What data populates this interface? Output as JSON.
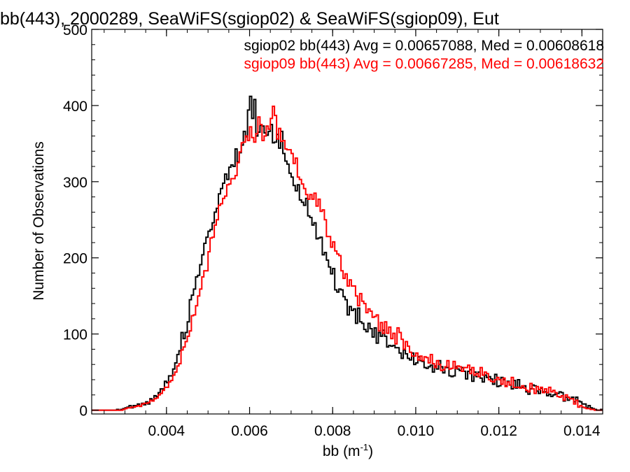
{
  "chart_data": {
    "type": "line",
    "title": "bb(443), 2000289, SeaWiFS(sgiop02) & SeaWiFS(sgiop09), Eut",
    "xlabel": "bb (m",
    "xlabel_sup": "-1",
    "xlabel_suffix": ")",
    "ylabel": "Number of Observations",
    "xlim": [
      0.0022,
      0.0145
    ],
    "ylim": [
      -5,
      500
    ],
    "xticks": [
      0.004,
      0.006,
      0.008,
      0.01,
      0.012,
      0.014
    ],
    "xtick_labels": [
      "0.004",
      "0.006",
      "0.008",
      "0.010",
      "0.012",
      "0.014"
    ],
    "yticks": [
      0,
      100,
      200,
      300,
      400,
      500
    ],
    "ytick_labels": [
      "0",
      "100",
      "200",
      "300",
      "400",
      "500"
    ],
    "legend_position": "top-right",
    "bin_width": 5e-05,
    "bin_start": 0.0022,
    "series": [
      {
        "name": "sgiop02",
        "color": "#000000",
        "legend_text": "sgiop02 bb(443) Avg = 0.00657088, Med = 0.00608618",
        "values": [
          0,
          0,
          0,
          0,
          0,
          0,
          0,
          0,
          0,
          0,
          0,
          0,
          1,
          0,
          1,
          2,
          3,
          4,
          6,
          3,
          6,
          6,
          8,
          5,
          9,
          7,
          11,
          8,
          15,
          13,
          19,
          18,
          23,
          28,
          28,
          38,
          36,
          45,
          45,
          54,
          62,
          73,
          78,
          102,
          94,
          102,
          116,
          145,
          151,
          159,
          175,
          177,
          191,
          204,
          219,
          227,
          235,
          237,
          246,
          260,
          265,
          284,
          291,
          298,
          310,
          303,
          319,
          322,
          320,
          343,
          326,
          338,
          348,
          366,
          359,
          394,
          412,
          383,
          408,
          360,
          365,
          374,
          373,
          364,
          361,
          366,
          375,
          351,
          352,
          362,
          344,
          366,
          337,
          327,
          323,
          311,
          306,
          295,
          288,
          296,
          276,
          273,
          269,
          278,
          255,
          253,
          243,
          246,
          225,
          226,
          227,
          204,
          207,
          197,
          188,
          179,
          186,
          158,
          155,
          159,
          158,
          149,
          145,
          125,
          136,
          131,
          133,
          114,
          134,
          116,
          114,
          106,
          103,
          114,
          107,
          96,
          108,
          88,
          102,
          97,
          105,
          97,
          83,
          85,
          84,
          85,
          82,
          82,
          75,
          68,
          79,
          74,
          68,
          66,
          75,
          60,
          62,
          70,
          65,
          64,
          56,
          55,
          57,
          59,
          50,
          58,
          54,
          65,
          57,
          49,
          56,
          56,
          45,
          44,
          45,
          57,
          54,
          52,
          56,
          51,
          41,
          51,
          53,
          38,
          50,
          44,
          50,
          42,
          37,
          46,
          43,
          44,
          41,
          34,
          47,
          31,
          32,
          43,
          40,
          32,
          38,
          33,
          28,
          39,
          29,
          40,
          30,
          30,
          32,
          24,
          21,
          28,
          33,
          32,
          25,
          22,
          29,
          24,
          24,
          19,
          21,
          18,
          20,
          21,
          22,
          24,
          23,
          12,
          17,
          13,
          15,
          17,
          11,
          17,
          12,
          11,
          8,
          8,
          3,
          6,
          3,
          2,
          1,
          0,
          0,
          1,
          0,
          0,
          0,
          0,
          0,
          0,
          0,
          0,
          0,
          0,
          0,
          0,
          0
        ]
      },
      {
        "name": "sgiop09",
        "color": "#ff0000",
        "legend_text": "sgiop09 bb(443) Avg = 0.00667285, Med = 0.00618632",
        "values": [
          0,
          0,
          0,
          0,
          0,
          0,
          0,
          0,
          0,
          0,
          0,
          0,
          0,
          0,
          0,
          1,
          2,
          3,
          3,
          4,
          4,
          5,
          6,
          5,
          8,
          9,
          9,
          10,
          13,
          12,
          15,
          16,
          20,
          22,
          26,
          30,
          30,
          37,
          39,
          46,
          50,
          58,
          61,
          79,
          83,
          90,
          97,
          104,
          124,
          125,
          137,
          150,
          159,
          175,
          183,
          183,
          208,
          226,
          227,
          243,
          250,
          269,
          271,
          278,
          281,
          296,
          297,
          304,
          304,
          308,
          325,
          339,
          351,
          352,
          360,
          354,
          372,
          358,
          352,
          363,
          385,
          375,
          354,
          360,
          373,
          369,
          383,
          399,
          387,
          356,
          370,
          353,
          354,
          343,
          342,
          342,
          337,
          324,
          331,
          306,
          303,
          297,
          291,
          283,
          277,
          283,
          277,
          285,
          268,
          277,
          261,
          263,
          250,
          228,
          228,
          214,
          221,
          209,
          205,
          203,
          183,
          173,
          179,
          163,
          171,
          163,
          163,
          150,
          137,
          153,
          143,
          140,
          128,
          133,
          130,
          122,
          123,
          125,
          104,
          115,
          101,
          116,
          101,
          109,
          94,
          101,
          87,
          108,
          102,
          93,
          80,
          90,
          84,
          76,
          71,
          71,
          75,
          66,
          71,
          65,
          70,
          69,
          62,
          73,
          61,
          56,
          65,
          60,
          52,
          53,
          57,
          65,
          54,
          55,
          64,
          55,
          58,
          57,
          51,
          56,
          56,
          59,
          48,
          56,
          46,
          48,
          44,
          56,
          46,
          50,
          48,
          40,
          38,
          37,
          40,
          43,
          40,
          34,
          42,
          31,
          37,
          33,
          43,
          30,
          30,
          30,
          29,
          32,
          29,
          26,
          24,
          35,
          28,
          22,
          31,
          27,
          30,
          23,
          28,
          23,
          30,
          24,
          26,
          23,
          18,
          17,
          19,
          13,
          20,
          17,
          15,
          15,
          8,
          13,
          4,
          6,
          4,
          3,
          2,
          2,
          1,
          1,
          0,
          0,
          0,
          0,
          0,
          0,
          0,
          0,
          0,
          0,
          0,
          0
        ]
      }
    ]
  }
}
